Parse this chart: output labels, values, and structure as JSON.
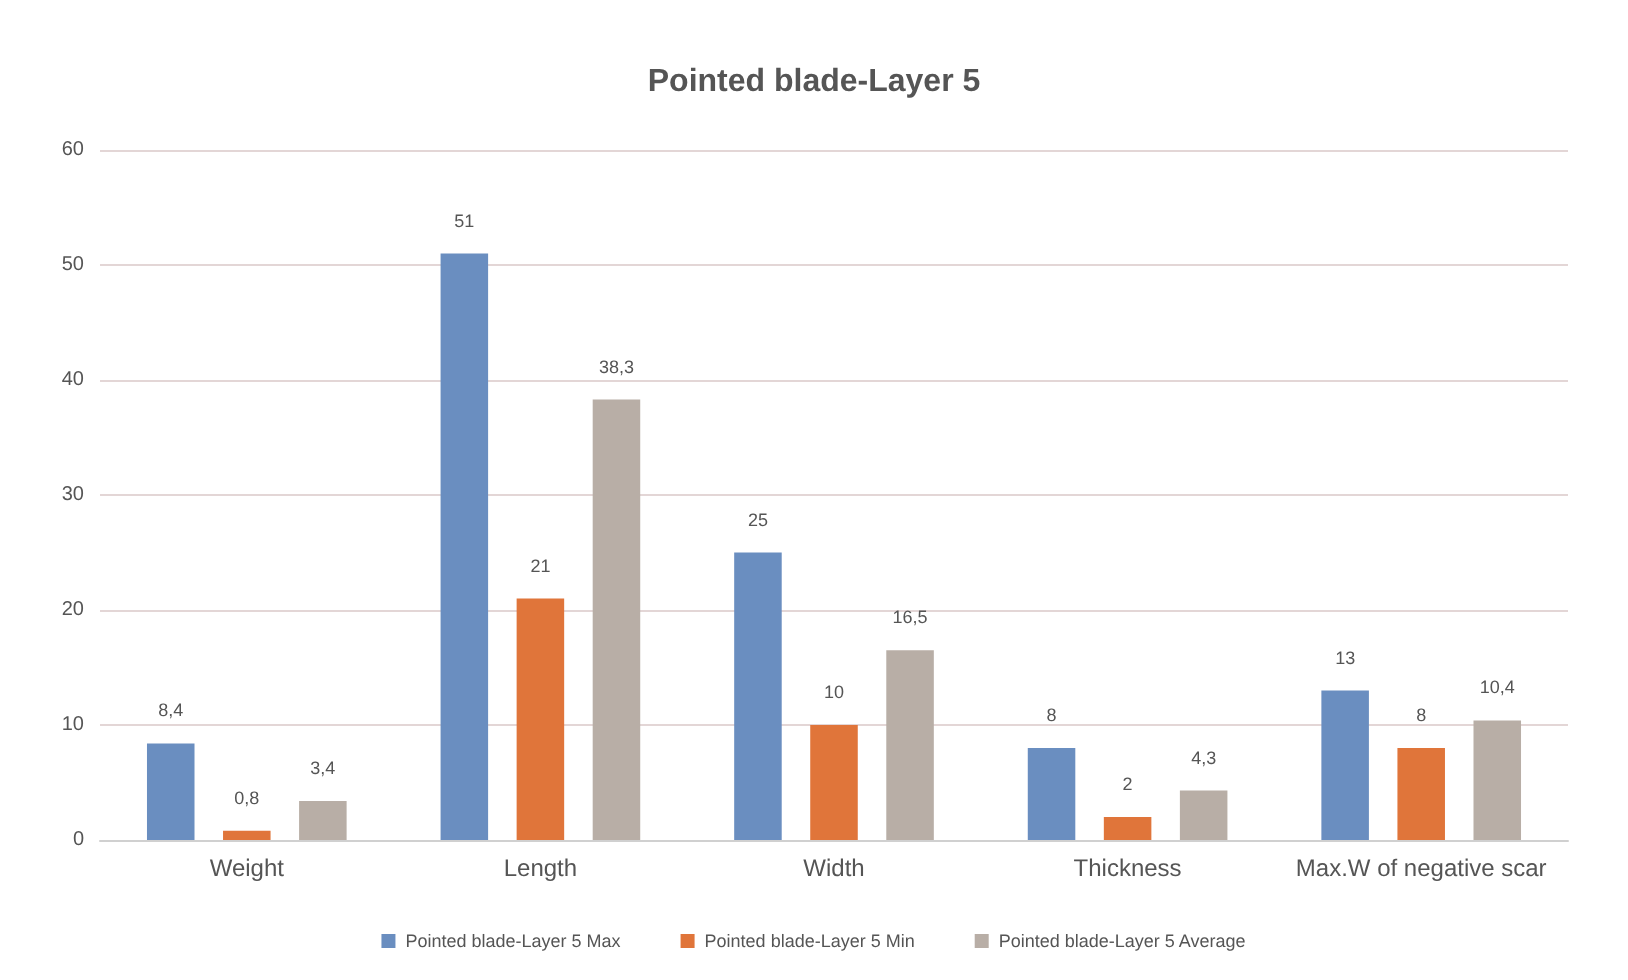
{
  "chart_data": {
    "type": "bar",
    "title": "Pointed blade-Layer 5",
    "categories": [
      "Weight",
      "Length",
      "Width",
      "Thickness",
      "Max.W of negative scar"
    ],
    "series": [
      {
        "name": "Pointed blade-Layer 5 Max",
        "color": "#6a8ec0",
        "values": [
          8.4,
          51,
          25,
          8,
          13
        ],
        "value_labels": [
          "8,4",
          "51",
          "25",
          "8",
          "13"
        ]
      },
      {
        "name": "Pointed blade-Layer 5 Min",
        "color": "#e0753a",
        "values": [
          0.8,
          21,
          10,
          2,
          8
        ],
        "value_labels": [
          "0,8",
          "21",
          "10",
          "2",
          "8"
        ]
      },
      {
        "name": "Pointed blade-Layer 5 Average",
        "color": "#b8aea6",
        "values": [
          3.4,
          38.3,
          16.5,
          4.3,
          10.4
        ],
        "value_labels": [
          "3,4",
          "38,3",
          "16,5",
          "4,3",
          "10,4"
        ]
      }
    ],
    "ylim": [
      0,
      60
    ],
    "yticks": [
      0,
      10,
      20,
      30,
      40,
      50,
      60
    ],
    "grid": "y",
    "legend": "bottom"
  }
}
